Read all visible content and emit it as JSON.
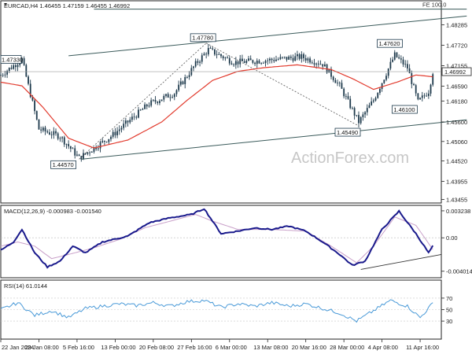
{
  "chart_data": [
    {
      "type": "candlestick",
      "title": "EURCAD,H4  1.46455 1.47159 1.46455 1.46992",
      "watermark": "ActionForex.com",
      "ylim": [
        1.4338,
        1.4893
      ],
      "yticks": [
        "1.48285",
        "1.47720",
        "1.47155",
        "1.46590",
        "1.46180",
        "1.45600",
        "1.45060",
        "1.44520",
        "1.43955",
        "1.43455"
      ],
      "current_price": "1.46992",
      "left_price_label": "1.47330",
      "fe_label": "FE 100.0",
      "annotations": [
        {
          "text": "1.44570",
          "x": 18.5,
          "y": 1.4457
        },
        {
          "text": "1.47780",
          "x": 48.5,
          "y": 1.4778
        },
        {
          "text": "1.45490",
          "x": 84.5,
          "y": 1.4549
        },
        {
          "text": "1.47620",
          "x": 93.5,
          "y": 1.4762
        },
        {
          "text": "1.46100",
          "x": 98.5,
          "y": 1.461
        }
      ],
      "channel": {
        "upper": [
          {
            "x": 16,
            "y": 1.4743
          },
          {
            "x": 110,
            "y": 1.4853
          }
        ],
        "lower": [
          {
            "x": 19,
            "y": 1.4457
          },
          {
            "x": 110,
            "y": 1.4566
          }
        ]
      },
      "fe_line": {
        "x1": 22,
        "x2": 110,
        "y": 1.4872
      },
      "anchors": [
        {
          "x": 0,
          "y": 1.469
        },
        {
          "x": 5,
          "y": 1.4733
        },
        {
          "x": 9,
          "y": 1.454
        },
        {
          "x": 14,
          "y": 1.452
        },
        {
          "x": 18.5,
          "y": 1.446
        },
        {
          "x": 26,
          "y": 1.452
        },
        {
          "x": 35,
          "y": 1.461
        },
        {
          "x": 41,
          "y": 1.464
        },
        {
          "x": 46,
          "y": 1.472
        },
        {
          "x": 49,
          "y": 1.476
        },
        {
          "x": 55,
          "y": 1.4725
        },
        {
          "x": 62,
          "y": 1.473
        },
        {
          "x": 71,
          "y": 1.474
        },
        {
          "x": 76,
          "y": 1.472
        },
        {
          "x": 80,
          "y": 1.466
        },
        {
          "x": 84.5,
          "y": 1.456
        },
        {
          "x": 88,
          "y": 1.462
        },
        {
          "x": 93,
          "y": 1.4745
        },
        {
          "x": 96,
          "y": 1.471
        },
        {
          "x": 98.5,
          "y": 1.4615
        },
        {
          "x": 101,
          "y": 1.4645
        },
        {
          "x": 102,
          "y": 1.4699
        }
      ],
      "ma_anchors": [
        {
          "x": 0,
          "y": 1.467
        },
        {
          "x": 5,
          "y": 1.466
        },
        {
          "x": 10,
          "y": 1.46
        },
        {
          "x": 16,
          "y": 1.4515
        },
        {
          "x": 22,
          "y": 1.4488
        },
        {
          "x": 30,
          "y": 1.451
        },
        {
          "x": 38,
          "y": 1.456
        },
        {
          "x": 44,
          "y": 1.462
        },
        {
          "x": 50,
          "y": 1.4675
        },
        {
          "x": 56,
          "y": 1.47
        },
        {
          "x": 62,
          "y": 1.471
        },
        {
          "x": 70,
          "y": 1.4718
        },
        {
          "x": 78,
          "y": 1.4705
        },
        {
          "x": 83,
          "y": 1.468
        },
        {
          "x": 88,
          "y": 1.465
        },
        {
          "x": 94,
          "y": 1.4672
        },
        {
          "x": 98,
          "y": 1.469
        },
        {
          "x": 102,
          "y": 1.4685
        }
      ]
    },
    {
      "type": "line",
      "title": "MACD(12,26,9) -0.000983 -0.001540",
      "ylim": [
        -0.0047,
        0.0038
      ],
      "yticks": [
        "0.003238",
        "0.00",
        "-0.004014"
      ],
      "macd_anchors": [
        {
          "x": 0,
          "y": -0.0015
        },
        {
          "x": 3,
          "y": -0.0005
        },
        {
          "x": 5,
          "y": 0.001
        },
        {
          "x": 8,
          "y": -0.0018
        },
        {
          "x": 11,
          "y": -0.0035
        },
        {
          "x": 14,
          "y": -0.0028
        },
        {
          "x": 17,
          "y": -0.001
        },
        {
          "x": 20,
          "y": -0.0018
        },
        {
          "x": 24,
          "y": -0.0005
        },
        {
          "x": 30,
          "y": 0.0002
        },
        {
          "x": 35,
          "y": 0.0018
        },
        {
          "x": 40,
          "y": 0.0024
        },
        {
          "x": 45,
          "y": 0.0028
        },
        {
          "x": 48,
          "y": 0.0035
        },
        {
          "x": 52,
          "y": 0.0005
        },
        {
          "x": 56,
          "y": 0.0008
        },
        {
          "x": 60,
          "y": 0.0012
        },
        {
          "x": 64,
          "y": 0.001
        },
        {
          "x": 68,
          "y": 0.0014
        },
        {
          "x": 72,
          "y": 0.0008
        },
        {
          "x": 76,
          "y": -0.0005
        },
        {
          "x": 80,
          "y": -0.002
        },
        {
          "x": 83,
          "y": -0.0033
        },
        {
          "x": 86,
          "y": -0.0028
        },
        {
          "x": 90,
          "y": 0.001
        },
        {
          "x": 94,
          "y": 0.0032
        },
        {
          "x": 98,
          "y": 0.0005
        },
        {
          "x": 101,
          "y": -0.0018
        },
        {
          "x": 102,
          "y": -0.001
        }
      ],
      "signal_anchors": [
        {
          "x": 0,
          "y": -0.001
        },
        {
          "x": 4,
          "y": -0.0005
        },
        {
          "x": 8,
          "y": -0.001
        },
        {
          "x": 12,
          "y": -0.0025
        },
        {
          "x": 16,
          "y": -0.002
        },
        {
          "x": 22,
          "y": -0.0012
        },
        {
          "x": 28,
          "y": -0.0002
        },
        {
          "x": 34,
          "y": 0.0012
        },
        {
          "x": 40,
          "y": 0.002
        },
        {
          "x": 46,
          "y": 0.0028
        },
        {
          "x": 50,
          "y": 0.002
        },
        {
          "x": 56,
          "y": 0.001
        },
        {
          "x": 64,
          "y": 0.001
        },
        {
          "x": 72,
          "y": 0.0008
        },
        {
          "x": 78,
          "y": -0.001
        },
        {
          "x": 84,
          "y": -0.003
        },
        {
          "x": 88,
          "y": -0.001
        },
        {
          "x": 93,
          "y": 0.0025
        },
        {
          "x": 98,
          "y": 0.0015
        },
        {
          "x": 102,
          "y": -0.0014
        }
      ],
      "trendline": [
        {
          "x": 85,
          "y": -0.0038
        },
        {
          "x": 104,
          "y": -0.002
        }
      ]
    },
    {
      "type": "line",
      "title": "RSI(14) 61.0144",
      "ylim": [
        0,
        100
      ],
      "yticks": [
        "70",
        "50",
        "30"
      ],
      "anchors": [
        {
          "x": 0,
          "y": 50
        },
        {
          "x": 4,
          "y": 62
        },
        {
          "x": 8,
          "y": 40
        },
        {
          "x": 12,
          "y": 48
        },
        {
          "x": 16,
          "y": 36
        },
        {
          "x": 20,
          "y": 52
        },
        {
          "x": 24,
          "y": 56
        },
        {
          "x": 28,
          "y": 60
        },
        {
          "x": 32,
          "y": 57
        },
        {
          "x": 36,
          "y": 62
        },
        {
          "x": 40,
          "y": 56
        },
        {
          "x": 44,
          "y": 64
        },
        {
          "x": 48,
          "y": 66
        },
        {
          "x": 52,
          "y": 54
        },
        {
          "x": 56,
          "y": 60
        },
        {
          "x": 60,
          "y": 56
        },
        {
          "x": 64,
          "y": 62
        },
        {
          "x": 68,
          "y": 56
        },
        {
          "x": 72,
          "y": 60
        },
        {
          "x": 76,
          "y": 52
        },
        {
          "x": 80,
          "y": 44
        },
        {
          "x": 84,
          "y": 30
        },
        {
          "x": 88,
          "y": 48
        },
        {
          "x": 92,
          "y": 66
        },
        {
          "x": 96,
          "y": 56
        },
        {
          "x": 99,
          "y": 36
        },
        {
          "x": 102,
          "y": 61
        }
      ]
    }
  ],
  "x_axis": {
    "labels": [
      "22 Jan 2024",
      "29 Jan 08:00",
      "5 Feb 16:00",
      "13 Feb 00:00",
      "20 Feb 08:00",
      "27 Feb 16:00",
      "6 Mar 00:00",
      "13 Mar 08:00",
      "20 Mar 16:00",
      "28 Mar 00:00",
      "4 Apr 08:00",
      "11 Apr 16:00"
    ],
    "positions": [
      0,
      9,
      18,
      27,
      36,
      45,
      54,
      63,
      72,
      81,
      90,
      99
    ]
  }
}
